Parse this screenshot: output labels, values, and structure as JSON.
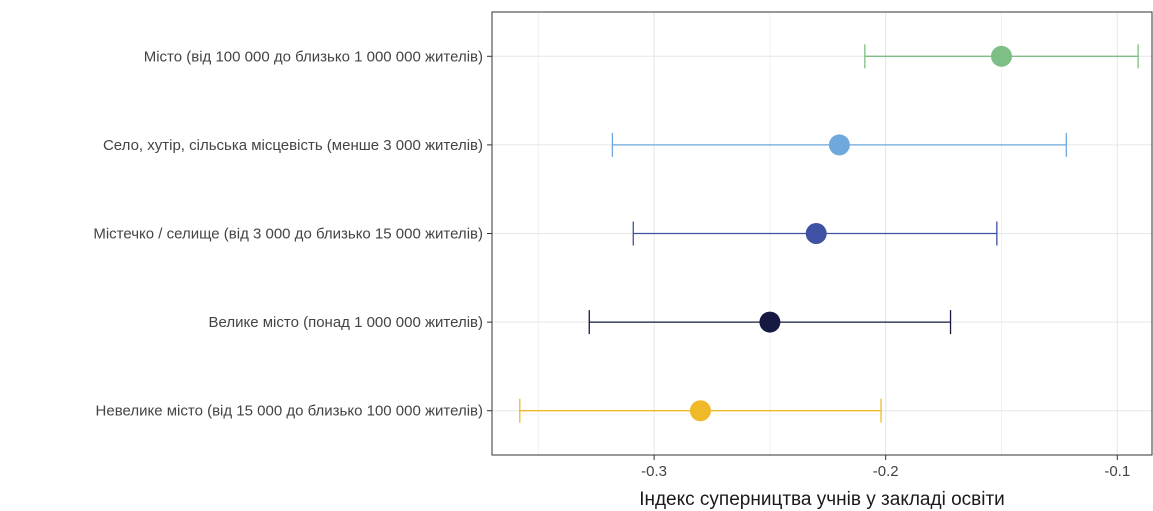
{
  "chart_data": {
    "type": "scatter",
    "variant": "point-range-with-error-bars",
    "xlabel": "Індекс суперництва учнів у закладі освіти",
    "xlim": [
      -0.37,
      -0.085
    ],
    "x_ticks": [
      -0.3,
      -0.2,
      -0.1
    ],
    "x_tick_labels": [
      "-0.3",
      "-0.2",
      "-0.1"
    ],
    "grid": true,
    "legend": "none",
    "categories": [
      "Місто (від 100 000 до близько 1 000 000 жителів)",
      "Село, хутір, сільська місцевість (менше 3 000 жителів)",
      "Містечко / селище (від 3 000 до близько 15 000 жителів)",
      "Велике місто (понад 1 000 000 жителів)",
      "Невелике місто (від 15 000 до близько 100 000 жителів)"
    ],
    "points": [
      {
        "category": "Місто (від 100 000 до близько 1 000 000 жителів)",
        "estimate": -0.15,
        "low": -0.209,
        "high": -0.091,
        "color": "#7dbf87"
      },
      {
        "category": "Село, хутір, сільська місцевість (менше 3 000 жителів)",
        "estimate": -0.22,
        "low": -0.318,
        "high": -0.122,
        "color": "#6fa8dc"
      },
      {
        "category": "Містечко / селище (від 3 000 до близько 15 000 жителів)",
        "estimate": -0.23,
        "low": -0.309,
        "high": -0.152,
        "color": "#3f51a2"
      },
      {
        "category": "Велике місто (понад 1 000 000 жителів)",
        "estimate": -0.25,
        "low": -0.328,
        "high": -0.172,
        "color": "#161941"
      },
      {
        "category": "Невелике місто (від 15 000 до близько 100 000 жителів)",
        "estimate": -0.28,
        "low": -0.358,
        "high": -0.202,
        "color": "#f0b929"
      }
    ]
  }
}
